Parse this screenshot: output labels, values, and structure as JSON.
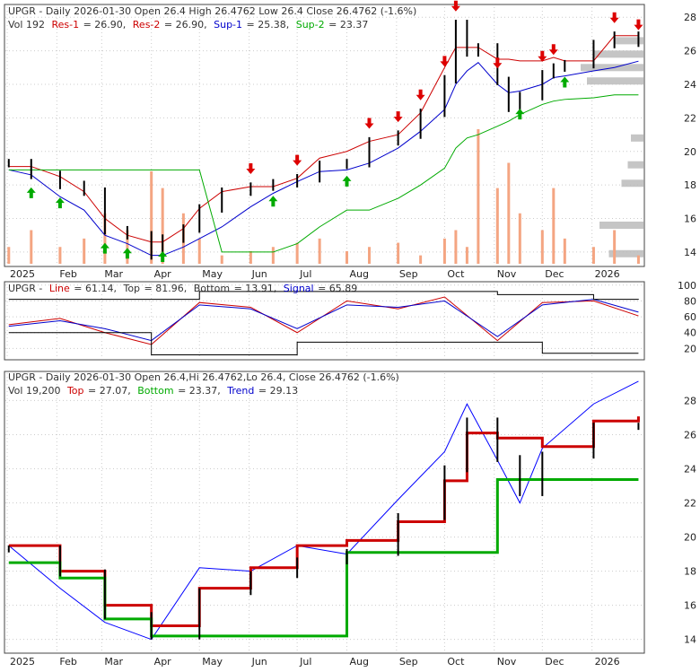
{
  "colors": {
    "frame": "#444444",
    "grid": "#cccccc",
    "price_bar": "#000000",
    "res_line": "#cc0000",
    "res_inner": "#e000e0",
    "sup_line": "#0000cc",
    "sup_outer": "#00aa00",
    "volume": "#f4a582",
    "volume_profile": "#bbbbbb",
    "arrow_up": "#00aa00",
    "arrow_down": "#dd0000",
    "label_gray": "#333333",
    "stoch_line": "#cc0000",
    "stoch_signal": "#0000cc",
    "stoch_band": "#000000",
    "trend": "#0000ff"
  },
  "panel1": {
    "header_line1": "UPGR - Daily 2026-01-30 Open 26.4  High 26.4762  Low 26.4  Close 26.4762 (-1.6%)",
    "vol": "Vol 192",
    "res1_label": "Res-1",
    "res1_value": "= 26.90,",
    "res2_label": "Res-2",
    "res2_value": "= 26.90,",
    "sup1_label": "Sup-1",
    "sup1_value": "= 25.38,",
    "sup2_label": "Sup-2",
    "sup2_value": "= 23.37"
  },
  "panel2": {
    "ticker": "UPGR -",
    "line_label": "Line",
    "line_value": "= 61.14,",
    "top_label": "Top",
    "top_value": "= 81.96,",
    "bottom_label": "Bottom",
    "bottom_value": "= 13.91,",
    "signal_label": "Signal",
    "signal_value": "= 65.89"
  },
  "panel3": {
    "header_line1": "UPGR - Daily 2026-01-30 Open 26.4,Hi 26.4762,Lo 26.4, Close 26.4762 (-1.6%)",
    "vol": "Vol 19,200",
    "top_label": "Top",
    "top_value": "= 27.07,",
    "bottom_label": "Bottom",
    "bottom_value": "= 23.37,",
    "trend_label": "Trend",
    "trend_value": "= 29.13"
  },
  "chart_data": [
    {
      "type": "line",
      "title": "UPGR - Daily 2026-01-30",
      "x": [
        "2025-01-02",
        "2025-01-16",
        "2025-02-03",
        "2025-02-18",
        "2025-03-03",
        "2025-03-17",
        "2025-04-01",
        "2025-04-08",
        "2025-04-21",
        "2025-05-01",
        "2025-05-15",
        "2025-06-02",
        "2025-06-16",
        "2025-07-01",
        "2025-07-15",
        "2025-08-01",
        "2025-08-15",
        "2025-09-02",
        "2025-09-16",
        "2025-10-01",
        "2025-10-08",
        "2025-10-15",
        "2025-10-22",
        "2025-11-03",
        "2025-11-10",
        "2025-11-17",
        "2025-12-01",
        "2025-12-08",
        "2025-12-15",
        "2026-01-02",
        "2026-01-15",
        "2026-01-30"
      ],
      "x_tick_labels": [
        "2025",
        "Feb",
        "Mar",
        "Apr",
        "May",
        "Jun",
        "Jul",
        "Aug",
        "Sep",
        "Oct",
        "Nov",
        "Dec",
        "2026"
      ],
      "y_ticks": [
        14,
        16,
        18,
        20,
        22,
        24,
        26,
        28
      ],
      "ylim": [
        13.3,
        28.6
      ],
      "series": [
        {
          "name": "Close",
          "values": [
            19.3,
            18.6,
            18.0,
            17.6,
            15.3,
            15.0,
            13.8,
            14.8,
            15.4,
            16.6,
            17.6,
            17.9,
            18.1,
            18.4,
            19.2,
            19.3,
            20.6,
            21.0,
            22.3,
            24.3,
            27.6,
            25.9,
            26.2,
            24.2,
            22.6,
            23.3,
            24.6,
            25.0,
            25.2,
            26.4,
            26.9,
            26.48
          ]
        },
        {
          "name": "Res-1",
          "values": [
            19.1,
            19.1,
            18.5,
            17.6,
            16.0,
            15.0,
            14.6,
            14.6,
            15.4,
            16.6,
            17.6,
            17.9,
            17.9,
            18.4,
            19.6,
            20.0,
            20.6,
            21.0,
            22.3,
            25.0,
            26.2,
            26.2,
            26.2,
            25.5,
            25.5,
            25.4,
            25.4,
            25.6,
            25.4,
            25.4,
            26.9,
            26.9
          ]
        },
        {
          "name": "Sup-1",
          "values": [
            18.9,
            18.6,
            17.3,
            16.5,
            15.0,
            14.5,
            13.8,
            13.8,
            14.3,
            14.8,
            15.5,
            16.7,
            17.5,
            18.2,
            18.8,
            18.9,
            19.3,
            20.2,
            21.2,
            22.5,
            24.0,
            24.8,
            25.3,
            24.0,
            23.5,
            23.6,
            24.0,
            24.4,
            24.5,
            24.8,
            25.0,
            25.38
          ]
        },
        {
          "name": "Sup-2",
          "values": [
            18.9,
            18.9,
            18.9,
            18.9,
            18.9,
            18.9,
            18.9,
            18.9,
            18.9,
            18.9,
            14.0,
            14.0,
            14.0,
            14.5,
            15.5,
            16.5,
            16.5,
            17.2,
            18.0,
            19.0,
            20.2,
            20.8,
            21.0,
            21.5,
            21.8,
            22.2,
            22.8,
            23.0,
            23.1,
            23.2,
            23.37,
            23.37
          ]
        }
      ],
      "volume": [
        20,
        40,
        20,
        30,
        60,
        40,
        110,
        90,
        60,
        30,
        10,
        15,
        20,
        25,
        30,
        15,
        20,
        25,
        10,
        30,
        40,
        20,
        160,
        90,
        120,
        60,
        40,
        90,
        30,
        20,
        40,
        10
      ],
      "volume_profile": [
        {
          "price": 25.0,
          "level": 1.0
        },
        {
          "price": 24.2,
          "level": 0.9
        },
        {
          "price": 25.8,
          "level": 0.8
        },
        {
          "price": 15.6,
          "level": 0.7
        },
        {
          "price": 13.9,
          "level": 0.55
        },
        {
          "price": 26.6,
          "level": 0.45
        },
        {
          "price": 18.1,
          "level": 0.35
        },
        {
          "price": 19.2,
          "level": 0.25
        },
        {
          "price": 20.8,
          "level": 0.2
        }
      ],
      "buy_signals": [
        "2025-01-16",
        "2025-02-03",
        "2025-03-03",
        "2025-03-17",
        "2025-04-08",
        "2025-06-16",
        "2025-08-01",
        "2025-11-17",
        "2025-12-15"
      ],
      "sell_signals": [
        "2025-06-02",
        "2025-07-01",
        "2025-08-15",
        "2025-09-02",
        "2025-09-16",
        "2025-10-01",
        "2025-10-08",
        "2025-11-03",
        "2025-12-01",
        "2025-12-08",
        "2026-01-15",
        "2026-01-30"
      ]
    },
    {
      "type": "line",
      "title": "UPGR - Line / Top / Bottom / Signal",
      "x": [
        "2025-01-02",
        "2025-02-03",
        "2025-03-03",
        "2025-04-01",
        "2025-05-01",
        "2025-06-02",
        "2025-07-01",
        "2025-08-01",
        "2025-09-02",
        "2025-10-01",
        "2025-11-03",
        "2025-12-01",
        "2026-01-02",
        "2026-01-30"
      ],
      "y_ticks": [
        20,
        40,
        60,
        80,
        100
      ],
      "ylim": [
        8,
        102
      ],
      "series": [
        {
          "name": "Line",
          "values": [
            50,
            58,
            40,
            25,
            78,
            72,
            40,
            80,
            70,
            85,
            30,
            78,
            80,
            61.14
          ]
        },
        {
          "name": "Signal",
          "values": [
            48,
            55,
            45,
            30,
            75,
            70,
            45,
            75,
            72,
            80,
            35,
            75,
            82,
            65.89
          ]
        },
        {
          "name": "Top",
          "values": [
            82,
            82,
            82,
            82,
            92,
            92,
            92,
            92,
            92,
            92,
            88,
            88,
            82,
            81.96
          ]
        },
        {
          "name": "Bottom",
          "values": [
            40,
            40,
            40,
            12,
            12,
            12,
            28,
            28,
            28,
            28,
            28,
            13.91,
            13.91,
            13.91
          ]
        }
      ]
    },
    {
      "type": "line",
      "title": "UPGR - Daily 2026-01-30 (Top / Bottom / Trend)",
      "x": [
        "2025-01-02",
        "2025-02-03",
        "2025-03-03",
        "2025-04-01",
        "2025-05-01",
        "2025-06-02",
        "2025-07-01",
        "2025-08-01",
        "2025-09-02",
        "2025-10-01",
        "2025-10-15",
        "2025-11-03",
        "2025-11-17",
        "2025-12-01",
        "2026-01-02",
        "2026-01-30"
      ],
      "x_tick_labels": [
        "2025",
        "Feb",
        "Mar",
        "Apr",
        "May",
        "Jun",
        "Jul",
        "Aug",
        "Sep",
        "Oct",
        "Nov",
        "Dec",
        "2026"
      ],
      "y_ticks": [
        14,
        16,
        18,
        20,
        22,
        24,
        26,
        28
      ],
      "ylim": [
        13.3,
        29.6
      ],
      "series": [
        {
          "name": "Close",
          "values": [
            19.3,
            17.9,
            15.4,
            14.2,
            16.8,
            17.8,
            18.6,
            19.1,
            21.2,
            24.0,
            26.8,
            24.6,
            22.6,
            24.8,
            26.5,
            26.48
          ]
        },
        {
          "name": "Trend",
          "values": [
            19.5,
            17.0,
            15.0,
            14.0,
            18.2,
            18.0,
            19.5,
            19.0,
            22.2,
            25.0,
            27.8,
            24.5,
            22.0,
            25.2,
            27.8,
            29.13
          ]
        },
        {
          "name": "Top",
          "values": [
            19.5,
            18.0,
            16.0,
            14.8,
            17.0,
            18.2,
            19.5,
            19.8,
            20.9,
            23.3,
            26.1,
            25.8,
            25.8,
            25.3,
            26.8,
            27.07
          ]
        },
        {
          "name": "Bottom",
          "values": [
            18.5,
            17.6,
            15.2,
            14.2,
            14.2,
            14.2,
            14.2,
            19.1,
            19.1,
            19.1,
            19.1,
            23.37,
            23.37,
            23.37,
            23.37,
            23.37
          ]
        }
      ]
    }
  ]
}
